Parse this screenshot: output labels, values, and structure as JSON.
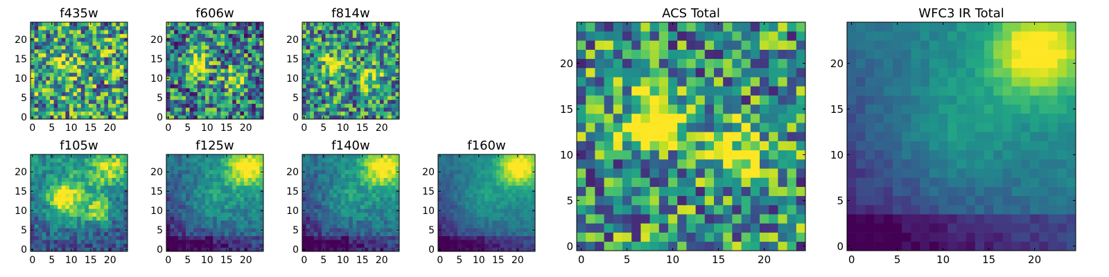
{
  "colormap": "viridis",
  "frame_color": "#000000",
  "chart_data": [
    {
      "type": "heatmap",
      "title": "f435w",
      "pattern": "f435w",
      "grid": [
        25,
        25
      ],
      "xlim": [
        0,
        25
      ],
      "ylim": [
        0,
        25
      ],
      "xticks": [
        0,
        5,
        10,
        15,
        20
      ],
      "yticks": [
        0,
        5,
        10,
        15,
        20
      ]
    },
    {
      "type": "heatmap",
      "title": "f606w",
      "pattern": "f606w",
      "grid": [
        25,
        25
      ],
      "xlim": [
        0,
        25
      ],
      "ylim": [
        0,
        25
      ],
      "xticks": [
        0,
        5,
        10,
        15,
        20
      ],
      "yticks": [
        0,
        5,
        10,
        15,
        20
      ]
    },
    {
      "type": "heatmap",
      "title": "f814w",
      "pattern": "f814w",
      "grid": [
        25,
        25
      ],
      "xlim": [
        0,
        25
      ],
      "ylim": [
        0,
        25
      ],
      "xticks": [
        0,
        5,
        10,
        15,
        20
      ],
      "yticks": [
        0,
        5,
        10,
        15,
        20
      ]
    },
    {
      "type": "heatmap",
      "title": "f105w",
      "pattern": "f105w",
      "grid": [
        25,
        25
      ],
      "xlim": [
        0,
        25
      ],
      "ylim": [
        0,
        25
      ],
      "xticks": [
        0,
        5,
        10,
        15,
        20
      ],
      "yticks": [
        0,
        5,
        10,
        15,
        20
      ]
    },
    {
      "type": "heatmap",
      "title": "f125w",
      "pattern": "f125w",
      "grid": [
        25,
        25
      ],
      "xlim": [
        0,
        25
      ],
      "ylim": [
        0,
        25
      ],
      "xticks": [
        0,
        5,
        10,
        15,
        20
      ],
      "yticks": [
        0,
        5,
        10,
        15,
        20
      ]
    },
    {
      "type": "heatmap",
      "title": "f140w",
      "pattern": "f140w",
      "grid": [
        25,
        25
      ],
      "xlim": [
        0,
        25
      ],
      "ylim": [
        0,
        25
      ],
      "xticks": [
        0,
        5,
        10,
        15,
        20
      ],
      "yticks": [
        0,
        5,
        10,
        15,
        20
      ]
    },
    {
      "type": "heatmap",
      "title": "f160w",
      "pattern": "f160w",
      "grid": [
        25,
        25
      ],
      "xlim": [
        0,
        25
      ],
      "ylim": [
        0,
        25
      ],
      "xticks": [
        0,
        5,
        10,
        15,
        20
      ],
      "yticks": [
        0,
        5,
        10,
        15,
        20
      ]
    },
    {
      "type": "heatmap",
      "title": "ACS Total",
      "pattern": "acs",
      "grid": [
        25,
        25
      ],
      "xlim": [
        0,
        25
      ],
      "ylim": [
        0,
        25
      ],
      "xticks": [
        0,
        5,
        10,
        15,
        20
      ],
      "yticks": [
        0,
        5,
        10,
        15,
        20
      ]
    },
    {
      "type": "heatmap",
      "title": "WFC3 IR Total",
      "pattern": "ir",
      "grid": [
        25,
        25
      ],
      "xlim": [
        0,
        25
      ],
      "ylim": [
        0,
        25
      ],
      "xticks": [
        0,
        5,
        10,
        15,
        20
      ],
      "yticks": [
        0,
        5,
        10,
        15,
        20
      ]
    }
  ]
}
